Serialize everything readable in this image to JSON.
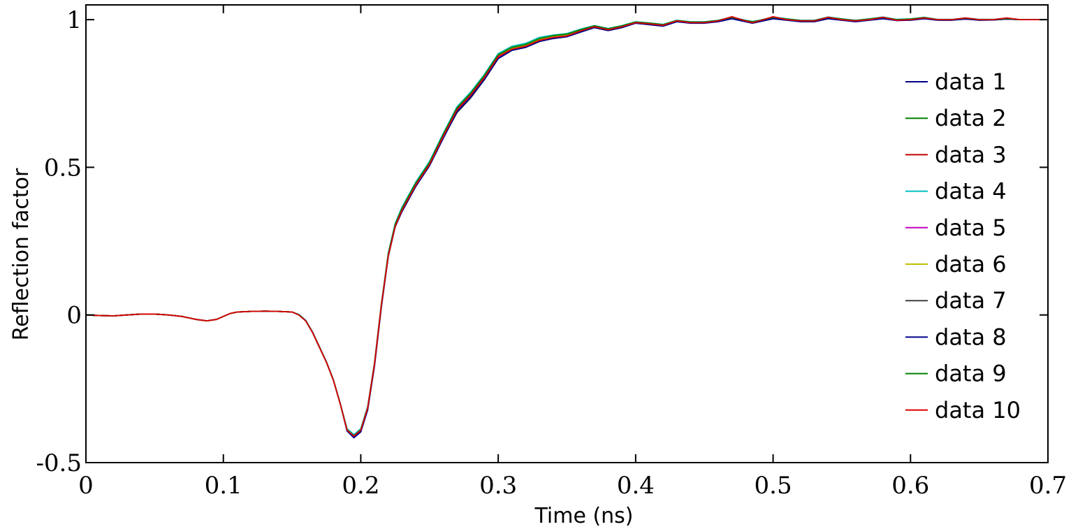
{
  "chart_data": {
    "type": "line",
    "title": "",
    "xlabel": "Time  (ns)",
    "ylabel": "Reflection factor",
    "xlim": [
      0,
      0.7
    ],
    "ylim": [
      -0.5,
      1.05
    ],
    "xticks": [
      0,
      0.1,
      0.2,
      0.3,
      0.4,
      0.5,
      0.6,
      0.7
    ],
    "xtick_labels": [
      "0",
      "0.1",
      "0.2",
      "0.3",
      "0.4",
      "0.5",
      "0.6",
      "0.7"
    ],
    "yticks": [
      -0.5,
      0,
      0.5,
      1
    ],
    "ytick_labels": [
      "-0.5",
      "0",
      "0.5",
      "1"
    ],
    "grid": false,
    "legend_position": "right",
    "x": [
      0,
      0.01,
      0.02,
      0.03,
      0.04,
      0.05,
      0.06,
      0.07,
      0.08,
      0.088,
      0.095,
      0.1,
      0.105,
      0.11,
      0.12,
      0.13,
      0.14,
      0.15,
      0.155,
      0.16,
      0.165,
      0.17,
      0.175,
      0.18,
      0.185,
      0.19,
      0.195,
      0.2,
      0.205,
      0.21,
      0.215,
      0.22,
      0.225,
      0.23,
      0.24,
      0.25,
      0.26,
      0.27,
      0.28,
      0.29,
      0.3,
      0.31,
      0.32,
      0.33,
      0.34,
      0.35,
      0.36,
      0.37,
      0.38,
      0.39,
      0.4,
      0.41,
      0.42,
      0.43,
      0.44,
      0.45,
      0.46,
      0.47,
      0.48,
      0.485,
      0.49,
      0.5,
      0.51,
      0.52,
      0.53,
      0.54,
      0.55,
      0.56,
      0.57,
      0.58,
      0.59,
      0.6,
      0.61,
      0.62,
      0.63,
      0.64,
      0.65,
      0.66,
      0.67,
      0.68,
      0.69,
      0.7
    ],
    "series": [
      {
        "name": "data 1",
        "color": "#00008b",
        "values": [
          0.0,
          -0.002,
          -0.003,
          0.0,
          0.003,
          0.003,
          0.0,
          -0.005,
          -0.015,
          -0.02,
          -0.015,
          -0.005,
          0.005,
          0.01,
          0.012,
          0.013,
          0.012,
          0.01,
          0.0,
          -0.02,
          -0.06,
          -0.11,
          -0.16,
          -0.22,
          -0.3,
          -0.39,
          -0.415,
          -0.395,
          -0.32,
          -0.17,
          0.03,
          0.2,
          0.3,
          0.355,
          0.44,
          0.51,
          0.6,
          0.69,
          0.74,
          0.8,
          0.87,
          0.9,
          0.91,
          0.93,
          0.94,
          0.945,
          0.96,
          0.975,
          0.965,
          0.975,
          0.99,
          0.985,
          0.98,
          0.995,
          0.99,
          0.99,
          0.995,
          1.005,
          0.995,
          0.99,
          0.995,
          1.005,
          1.0,
          0.995,
          0.995,
          1.005,
          1.0,
          0.995,
          1.0,
          1.005,
          0.998,
          1.0,
          1.005,
          1.0,
          1.0,
          1.003,
          1.0,
          1.0,
          1.002,
          1.0,
          1.0,
          1.0
        ]
      },
      {
        "name": "data 2",
        "color": "#008000",
        "values": [
          0.0,
          -0.002,
          -0.003,
          0.0,
          0.003,
          0.003,
          0.0,
          -0.005,
          -0.015,
          -0.02,
          -0.015,
          -0.005,
          0.005,
          0.01,
          0.012,
          0.013,
          0.012,
          0.01,
          0.0,
          -0.02,
          -0.06,
          -0.11,
          -0.16,
          -0.22,
          -0.3,
          -0.39,
          -0.41,
          -0.39,
          -0.315,
          -0.165,
          0.035,
          0.205,
          0.305,
          0.36,
          0.445,
          0.515,
          0.61,
          0.7,
          0.75,
          0.81,
          0.88,
          0.905,
          0.915,
          0.935,
          0.945,
          0.95,
          0.965,
          0.978,
          0.968,
          0.978,
          0.992,
          0.988,
          0.983,
          0.997,
          0.992,
          0.992,
          0.997,
          1.008,
          0.997,
          0.993,
          0.997,
          1.008,
          1.002,
          0.997,
          0.997,
          1.008,
          1.002,
          0.997,
          1.002,
          1.008,
          1.0,
          1.002,
          1.007,
          1.0,
          1.0,
          1.005,
          1.0,
          1.0,
          1.004,
          1.0,
          1.0,
          1.0
        ]
      },
      {
        "name": "data 3",
        "color": "#c00000",
        "values": [
          0.0,
          -0.002,
          -0.003,
          0.0,
          0.003,
          0.003,
          0.0,
          -0.005,
          -0.015,
          -0.02,
          -0.015,
          -0.005,
          0.005,
          0.01,
          0.012,
          0.013,
          0.012,
          0.01,
          0.0,
          -0.02,
          -0.06,
          -0.11,
          -0.16,
          -0.22,
          -0.3,
          -0.39,
          -0.41,
          -0.39,
          -0.315,
          -0.165,
          0.035,
          0.2,
          0.3,
          0.355,
          0.44,
          0.51,
          0.605,
          0.695,
          0.745,
          0.805,
          0.875,
          0.9,
          0.91,
          0.93,
          0.94,
          0.945,
          0.962,
          0.976,
          0.966,
          0.976,
          0.99,
          0.986,
          0.981,
          0.996,
          0.99,
          0.99,
          0.996,
          1.006,
          0.995,
          0.99,
          0.996,
          1.006,
          1.0,
          0.995,
          0.996,
          1.006,
          1.0,
          0.996,
          1.0,
          1.006,
          0.998,
          1.0,
          1.005,
          1.0,
          1.0,
          1.004,
          1.0,
          1.0,
          1.003,
          1.0,
          1.0,
          1.0
        ]
      },
      {
        "name": "data 4",
        "color": "#00bfbf",
        "values": [
          0.0,
          -0.002,
          -0.003,
          0.0,
          0.003,
          0.003,
          0.0,
          -0.005,
          -0.015,
          -0.02,
          -0.015,
          -0.005,
          0.005,
          0.01,
          0.012,
          0.013,
          0.012,
          0.01,
          0.002,
          -0.018,
          -0.058,
          -0.108,
          -0.158,
          -0.218,
          -0.298,
          -0.385,
          -0.405,
          -0.385,
          -0.31,
          -0.16,
          0.04,
          0.21,
          0.31,
          0.365,
          0.45,
          0.52,
          0.615,
          0.705,
          0.755,
          0.815,
          0.885,
          0.91,
          0.92,
          0.94,
          0.948,
          0.953,
          0.968,
          0.98,
          0.97,
          0.98,
          0.993,
          0.989,
          0.984,
          0.998,
          0.993,
          0.993,
          0.998,
          1.009,
          0.998,
          0.994,
          0.998,
          1.009,
          1.003,
          0.998,
          0.998,
          1.009,
          1.003,
          0.998,
          1.003,
          1.009,
          1.001,
          1.003,
          1.008,
          1.001,
          1.001,
          1.006,
          1.001,
          1.001,
          1.005,
          1.0,
          1.0,
          1.0
        ]
      },
      {
        "name": "data 5",
        "color": "#bf00bf",
        "values": [
          0.0,
          -0.002,
          -0.003,
          0.0,
          0.003,
          0.003,
          0.0,
          -0.005,
          -0.015,
          -0.02,
          -0.015,
          -0.005,
          0.005,
          0.01,
          0.012,
          0.013,
          0.012,
          0.01,
          0.0,
          -0.02,
          -0.06,
          -0.11,
          -0.16,
          -0.22,
          -0.3,
          -0.392,
          -0.412,
          -0.392,
          -0.318,
          -0.168,
          0.032,
          0.2,
          0.3,
          0.353,
          0.438,
          0.508,
          0.6,
          0.69,
          0.74,
          0.8,
          0.87,
          0.898,
          0.908,
          0.928,
          0.938,
          0.943,
          0.96,
          0.974,
          0.964,
          0.974,
          0.989,
          0.984,
          0.979,
          0.994,
          0.989,
          0.989,
          0.994,
          1.004,
          0.994,
          0.989,
          0.994,
          1.004,
          0.999,
          0.994,
          0.994,
          1.004,
          0.999,
          0.994,
          0.999,
          1.004,
          0.997,
          0.999,
          1.004,
          0.999,
          0.999,
          1.002,
          0.999,
          0.999,
          1.002,
          1.0,
          1.0,
          1.0
        ]
      },
      {
        "name": "data 6",
        "color": "#bfbf00",
        "values": [
          0.0,
          -0.002,
          -0.003,
          0.0,
          0.003,
          0.003,
          0.0,
          -0.005,
          -0.015,
          -0.02,
          -0.015,
          -0.005,
          0.005,
          0.01,
          0.012,
          0.013,
          0.012,
          0.01,
          0.0,
          -0.02,
          -0.06,
          -0.11,
          -0.16,
          -0.22,
          -0.3,
          -0.39,
          -0.41,
          -0.39,
          -0.315,
          -0.165,
          0.035,
          0.203,
          0.303,
          0.358,
          0.443,
          0.513,
          0.607,
          0.697,
          0.747,
          0.807,
          0.877,
          0.903,
          0.913,
          0.933,
          0.943,
          0.948,
          0.964,
          0.977,
          0.967,
          0.977,
          0.991,
          0.987,
          0.982,
          0.996,
          0.991,
          0.991,
          0.996,
          1.007,
          0.996,
          0.992,
          0.996,
          1.007,
          1.001,
          0.996,
          0.996,
          1.007,
          1.001,
          0.996,
          1.001,
          1.007,
          0.999,
          1.001,
          1.006,
          1.0,
          1.0,
          1.004,
          1.0,
          1.0,
          1.003,
          1.0,
          1.0,
          1.0
        ]
      },
      {
        "name": "data 7",
        "color": "#404040",
        "values": [
          0.0,
          -0.002,
          -0.003,
          0.0,
          0.003,
          0.003,
          0.0,
          -0.005,
          -0.015,
          -0.02,
          -0.015,
          -0.005,
          0.005,
          0.01,
          0.012,
          0.013,
          0.012,
          0.01,
          0.0,
          -0.02,
          -0.06,
          -0.11,
          -0.16,
          -0.22,
          -0.3,
          -0.39,
          -0.41,
          -0.39,
          -0.315,
          -0.165,
          0.035,
          0.2,
          0.3,
          0.352,
          0.437,
          0.507,
          0.6,
          0.685,
          0.735,
          0.797,
          0.868,
          0.897,
          0.908,
          0.928,
          0.938,
          0.943,
          0.958,
          0.973,
          0.963,
          0.973,
          0.988,
          0.984,
          0.979,
          0.994,
          0.989,
          0.989,
          0.994,
          1.004,
          0.994,
          0.989,
          0.994,
          1.004,
          0.999,
          0.994,
          0.994,
          1.004,
          0.999,
          0.994,
          0.999,
          1.004,
          0.997,
          0.999,
          1.004,
          0.999,
          0.999,
          1.002,
          0.999,
          0.999,
          1.002,
          1.0,
          1.0,
          1.0
        ]
      },
      {
        "name": "data 8",
        "color": "#00008b",
        "values": [
          0.0,
          -0.002,
          -0.003,
          0.0,
          0.003,
          0.003,
          0.0,
          -0.005,
          -0.015,
          -0.02,
          -0.015,
          -0.005,
          0.005,
          0.01,
          0.012,
          0.013,
          0.012,
          0.01,
          0.0,
          -0.02,
          -0.06,
          -0.11,
          -0.16,
          -0.22,
          -0.3,
          -0.393,
          -0.416,
          -0.396,
          -0.322,
          -0.172,
          0.028,
          0.198,
          0.298,
          0.35,
          0.435,
          0.505,
          0.598,
          0.688,
          0.738,
          0.798,
          0.868,
          0.896,
          0.906,
          0.926,
          0.936,
          0.942,
          0.958,
          0.973,
          0.963,
          0.973,
          0.988,
          0.983,
          0.978,
          0.993,
          0.988,
          0.988,
          0.993,
          1.003,
          0.993,
          0.988,
          0.993,
          1.003,
          0.998,
          0.993,
          0.993,
          1.003,
          0.998,
          0.993,
          0.998,
          1.003,
          0.997,
          0.998,
          1.003,
          0.998,
          0.998,
          1.002,
          0.998,
          0.999,
          1.002,
          1.0,
          1.0,
          1.0
        ]
      },
      {
        "name": "data 9",
        "color": "#008000",
        "values": [
          0.0,
          -0.002,
          -0.003,
          0.0,
          0.003,
          0.003,
          0.0,
          -0.005,
          -0.015,
          -0.02,
          -0.015,
          -0.005,
          0.005,
          0.01,
          0.012,
          0.013,
          0.012,
          0.01,
          0.0,
          -0.02,
          -0.06,
          -0.11,
          -0.16,
          -0.22,
          -0.3,
          -0.389,
          -0.409,
          -0.389,
          -0.314,
          -0.164,
          0.036,
          0.206,
          0.306,
          0.361,
          0.446,
          0.516,
          0.611,
          0.701,
          0.751,
          0.811,
          0.881,
          0.906,
          0.916,
          0.936,
          0.946,
          0.951,
          0.966,
          0.979,
          0.969,
          0.979,
          0.992,
          0.988,
          0.983,
          0.997,
          0.992,
          0.992,
          0.997,
          1.008,
          0.997,
          0.993,
          0.997,
          1.008,
          1.002,
          0.997,
          0.997,
          1.008,
          1.002,
          0.997,
          1.002,
          1.008,
          1.0,
          1.002,
          1.007,
          1.0,
          1.0,
          1.005,
          1.0,
          1.0,
          1.004,
          1.0,
          1.0,
          1.0
        ]
      },
      {
        "name": "data 10",
        "color": "#e00000",
        "values": [
          0.0,
          -0.002,
          -0.003,
          0.0,
          0.003,
          0.003,
          0.0,
          -0.005,
          -0.015,
          -0.02,
          -0.015,
          -0.005,
          0.005,
          0.01,
          0.012,
          0.013,
          0.012,
          0.01,
          0.0,
          -0.02,
          -0.06,
          -0.11,
          -0.16,
          -0.22,
          -0.3,
          -0.39,
          -0.41,
          -0.39,
          -0.315,
          -0.165,
          0.035,
          0.2,
          0.3,
          0.355,
          0.44,
          0.51,
          0.605,
          0.695,
          0.745,
          0.805,
          0.875,
          0.9,
          0.91,
          0.93,
          0.94,
          0.945,
          0.962,
          0.976,
          0.966,
          0.976,
          0.99,
          0.986,
          0.981,
          0.996,
          0.99,
          0.99,
          0.996,
          1.01,
          0.996,
          0.99,
          0.996,
          1.01,
          1.0,
          0.996,
          0.996,
          1.008,
          1.0,
          0.996,
          1.0,
          1.008,
          0.998,
          1.0,
          1.006,
          1.0,
          1.0,
          1.006,
          1.0,
          1.0,
          1.006,
          1.0,
          1.0,
          1.0
        ]
      }
    ]
  }
}
